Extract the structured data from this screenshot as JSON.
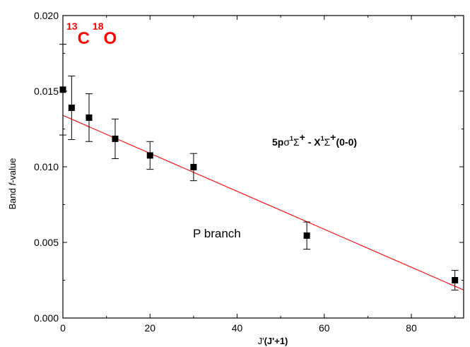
{
  "chart_data": {
    "type": "scatter",
    "xlabel_main": "J'",
    "xlabel_paren": "(J'+1)",
    "ylabel_main": "Band ",
    "ylabel_italic": "f",
    "ylabel_tail": "-value",
    "xlim": [
      0,
      92
    ],
    "ylim": [
      0.0,
      0.02
    ],
    "x_ticks": [
      {
        "value": 0,
        "label": "0"
      },
      {
        "value": 20,
        "label": "20"
      },
      {
        "value": 40,
        "label": "40"
      },
      {
        "value": 60,
        "label": "60"
      },
      {
        "value": 80,
        "label": "80"
      }
    ],
    "y_ticks": [
      {
        "value": 0.0,
        "label": "0.000"
      },
      {
        "value": 0.005,
        "label": "0.005"
      },
      {
        "value": 0.01,
        "label": "0.010"
      },
      {
        "value": 0.015,
        "label": "0.015"
      },
      {
        "value": 0.02,
        "label": "0.020"
      }
    ],
    "points": [
      {
        "x": 0,
        "y": 0.0151,
        "err": 0.003
      },
      {
        "x": 2,
        "y": 0.0139,
        "err": 0.0021
      },
      {
        "x": 6,
        "y": 0.01325,
        "err": 0.00158
      },
      {
        "x": 12,
        "y": 0.01185,
        "err": 0.00131
      },
      {
        "x": 20,
        "y": 0.01075,
        "err": 0.00092
      },
      {
        "x": 30,
        "y": 0.00998,
        "err": 0.0009
      },
      {
        "x": 56,
        "y": 0.00545,
        "err": 0.0009
      },
      {
        "x": 90,
        "y": 0.0025,
        "err": 0.00065
      }
    ],
    "fit_line": {
      "x": [
        0,
        92
      ],
      "y": [
        0.0134,
        0.00185
      ],
      "color": "#ff0000"
    },
    "isotope": {
      "mass1": "13",
      "elem1": "C",
      "mass2": "18",
      "elem2": "O",
      "color": "#ff0000"
    },
    "transition": {
      "lead": "5p",
      "sigma": "σ",
      "sup1": "1",
      "Sigma1": "Σ",
      "plus1": "+",
      "dash": " - X",
      "sup2": "1",
      "Sigma2": "Σ",
      "plus2": "+",
      "band": "(0-0)"
    },
    "branch_label": "P branch"
  }
}
